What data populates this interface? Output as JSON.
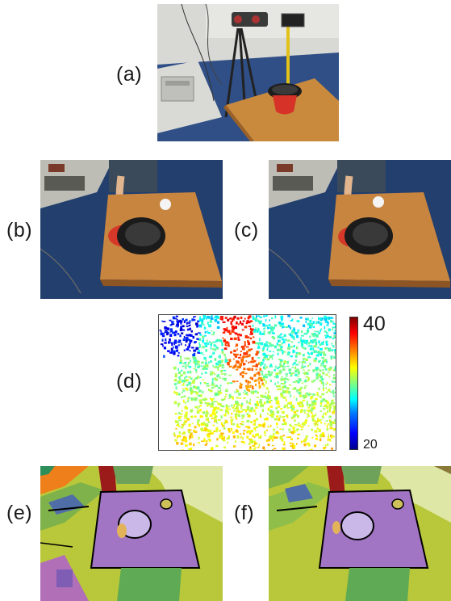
{
  "figure": {
    "panels": [
      {
        "id": "a",
        "label": "(a)"
      },
      {
        "id": "b",
        "label": "(b)"
      },
      {
        "id": "c",
        "label": "(c)"
      },
      {
        "id": "d",
        "label": "(d)"
      },
      {
        "id": "e",
        "label": "(e)"
      },
      {
        "id": "f",
        "label": "(f)"
      }
    ],
    "colorbar": {
      "max_label": "40",
      "min_label": "20",
      "colormap": "jet"
    }
  }
}
